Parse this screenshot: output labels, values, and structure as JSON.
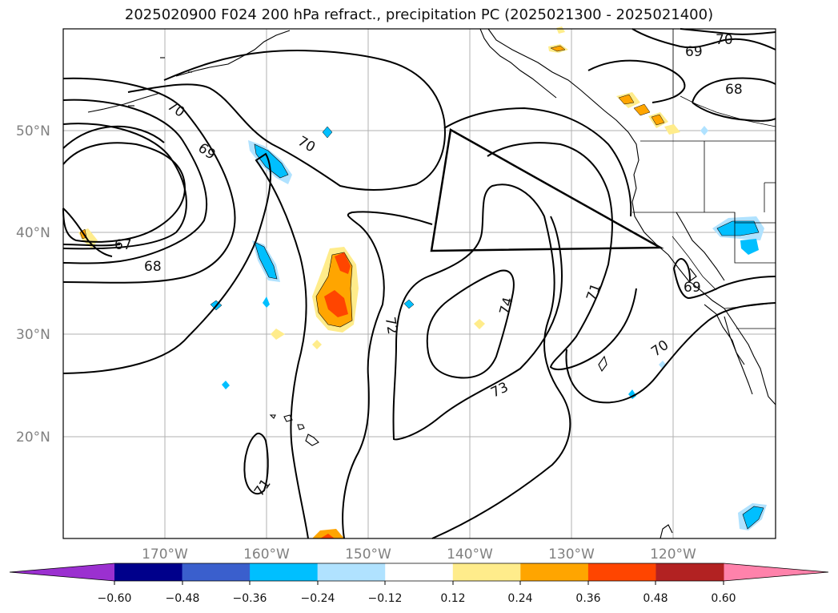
{
  "title": "2025020900 F024 200 hPa refract., precipitation PC (2025021300 - 2025021400)",
  "map": {
    "lat_labels": [
      "50°N",
      "40°N",
      "30°N",
      "20°N"
    ],
    "lon_labels": [
      "170°W",
      "160°W",
      "150°W",
      "140°W",
      "130°W",
      "120°W"
    ],
    "contour_labels": [
      "70",
      "69",
      "70",
      "67",
      "68",
      "72",
      "74",
      "73",
      "71",
      "71",
      "70",
      "69",
      "70",
      "69",
      "68"
    ]
  },
  "colorbar": {
    "labels": [
      "−0.60",
      "−0.48",
      "−0.36",
      "−0.24",
      "−0.12",
      "0.12",
      "0.24",
      "0.36",
      "0.48",
      "0.60"
    ],
    "colors": [
      "#9b30d0",
      "#00008b",
      "#3a5fcd",
      "#00bfff",
      "#b0e2ff",
      "#ffffff",
      "#ffec8b",
      "#ffa500",
      "#ff4500",
      "#b22222",
      "#ff82ab"
    ]
  }
}
